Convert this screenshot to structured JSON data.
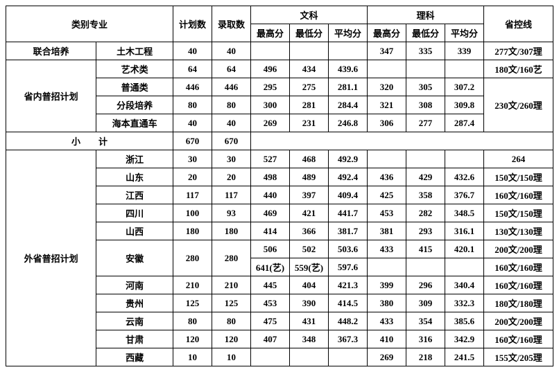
{
  "headers": {
    "category": "类别专业",
    "plan": "计划数",
    "admit": "录取数",
    "arts": "文科",
    "science": "理科",
    "high": "最高分",
    "low": "最低分",
    "avg": "平均分",
    "ctrl": "省控线"
  },
  "rows": {
    "r1": {
      "cat1": "联合培养",
      "cat2": "土木工程",
      "plan": "40",
      "admit": "40",
      "wh": "",
      "wl": "",
      "wa": "",
      "lh": "347",
      "ll": "335",
      "la": "339",
      "ctrl": "277文/307理"
    },
    "r2": {
      "cat1": "省内普招计划",
      "cat2": "艺术类",
      "plan": "64",
      "admit": "64",
      "wh": "496",
      "wl": "434",
      "wa": "439.6",
      "lh": "",
      "ll": "",
      "la": "",
      "ctrl": "180文/160艺"
    },
    "r3": {
      "cat2": "普通类",
      "plan": "446",
      "admit": "446",
      "wh": "295",
      "wl": "275",
      "wa": "281.1",
      "lh": "320",
      "ll": "305",
      "la": "307.2",
      "ctrl": "230文/260理"
    },
    "r4": {
      "cat2": "分段培养",
      "plan": "80",
      "admit": "80",
      "wh": "300",
      "wl": "281",
      "wa": "284.4",
      "lh": "321",
      "ll": "308",
      "la": "309.8"
    },
    "r5": {
      "cat2": "海本直通车",
      "plan": "40",
      "admit": "40",
      "wh": "269",
      "wl": "231",
      "wa": "246.8",
      "lh": "306",
      "ll": "277",
      "la": "287.4"
    },
    "subtotal": {
      "label": "小　　计",
      "plan": "670",
      "admit": "670"
    },
    "p1": {
      "cat1": "外省普招计划",
      "cat2": "浙江",
      "plan": "30",
      "admit": "30",
      "wh": "527",
      "wl": "468",
      "wa": "492.9",
      "lh": "",
      "ll": "",
      "la": "",
      "ctrl": "264"
    },
    "p2": {
      "cat2": "山东",
      "plan": "20",
      "admit": "20",
      "wh": "498",
      "wl": "489",
      "wa": "492.4",
      "lh": "436",
      "ll": "429",
      "la": "432.6",
      "ctrl": "150文/150理"
    },
    "p3": {
      "cat2": "江西",
      "plan": "117",
      "admit": "117",
      "wh": "440",
      "wl": "397",
      "wa": "409.4",
      "lh": "425",
      "ll": "358",
      "la": "376.7",
      "ctrl": "160文/160理"
    },
    "p4": {
      "cat2": "四川",
      "plan": "100",
      "admit": "93",
      "wh": "469",
      "wl": "421",
      "wa": "441.7",
      "lh": "453",
      "ll": "282",
      "la": "348.5",
      "ctrl": "150文/150理"
    },
    "p5": {
      "cat2": "山西",
      "plan": "180",
      "admit": "180",
      "wh": "414",
      "wl": "366",
      "wa": "381.7",
      "lh": "381",
      "ll": "293",
      "la": "316.1",
      "ctrl": "130文/130理"
    },
    "p6a": {
      "cat2": "安徽",
      "plan": "280",
      "admit": "280",
      "wh": "506",
      "wl": "502",
      "wa": "503.6",
      "lh": "433",
      "ll": "415",
      "la": "420.1",
      "ctrl": "200文/200理"
    },
    "p6b": {
      "wh": "641(艺)",
      "wl": "559(艺)",
      "wa": "597.6",
      "lh": "",
      "ll": "",
      "la": "",
      "ctrl": "160文/160理"
    },
    "p7": {
      "cat2": "河南",
      "plan": "210",
      "admit": "210",
      "wh": "445",
      "wl": "404",
      "wa": "421.3",
      "lh": "399",
      "ll": "296",
      "la": "340.4",
      "ctrl": "160文/160理"
    },
    "p8": {
      "cat2": "贵州",
      "plan": "125",
      "admit": "125",
      "wh": "453",
      "wl": "390",
      "wa": "414.5",
      "lh": "380",
      "ll": "309",
      "la": "332.3",
      "ctrl": "180文/180理"
    },
    "p9": {
      "cat2": "云南",
      "plan": "80",
      "admit": "80",
      "wh": "475",
      "wl": "431",
      "wa": "448.2",
      "lh": "433",
      "ll": "354",
      "la": "385.6",
      "ctrl": "200文/200理"
    },
    "p10": {
      "cat2": "甘肃",
      "plan": "120",
      "admit": "120",
      "wh": "407",
      "wl": "348",
      "wa": "367.3",
      "lh": "410",
      "ll": "316",
      "la": "342.9",
      "ctrl": "160文/160理"
    },
    "p11": {
      "cat2": "西藏",
      "plan": "10",
      "admit": "10",
      "wh": "",
      "wl": "",
      "wa": "",
      "lh": "269",
      "ll": "218",
      "la": "241.5",
      "ctrl": "155文/205理"
    }
  }
}
